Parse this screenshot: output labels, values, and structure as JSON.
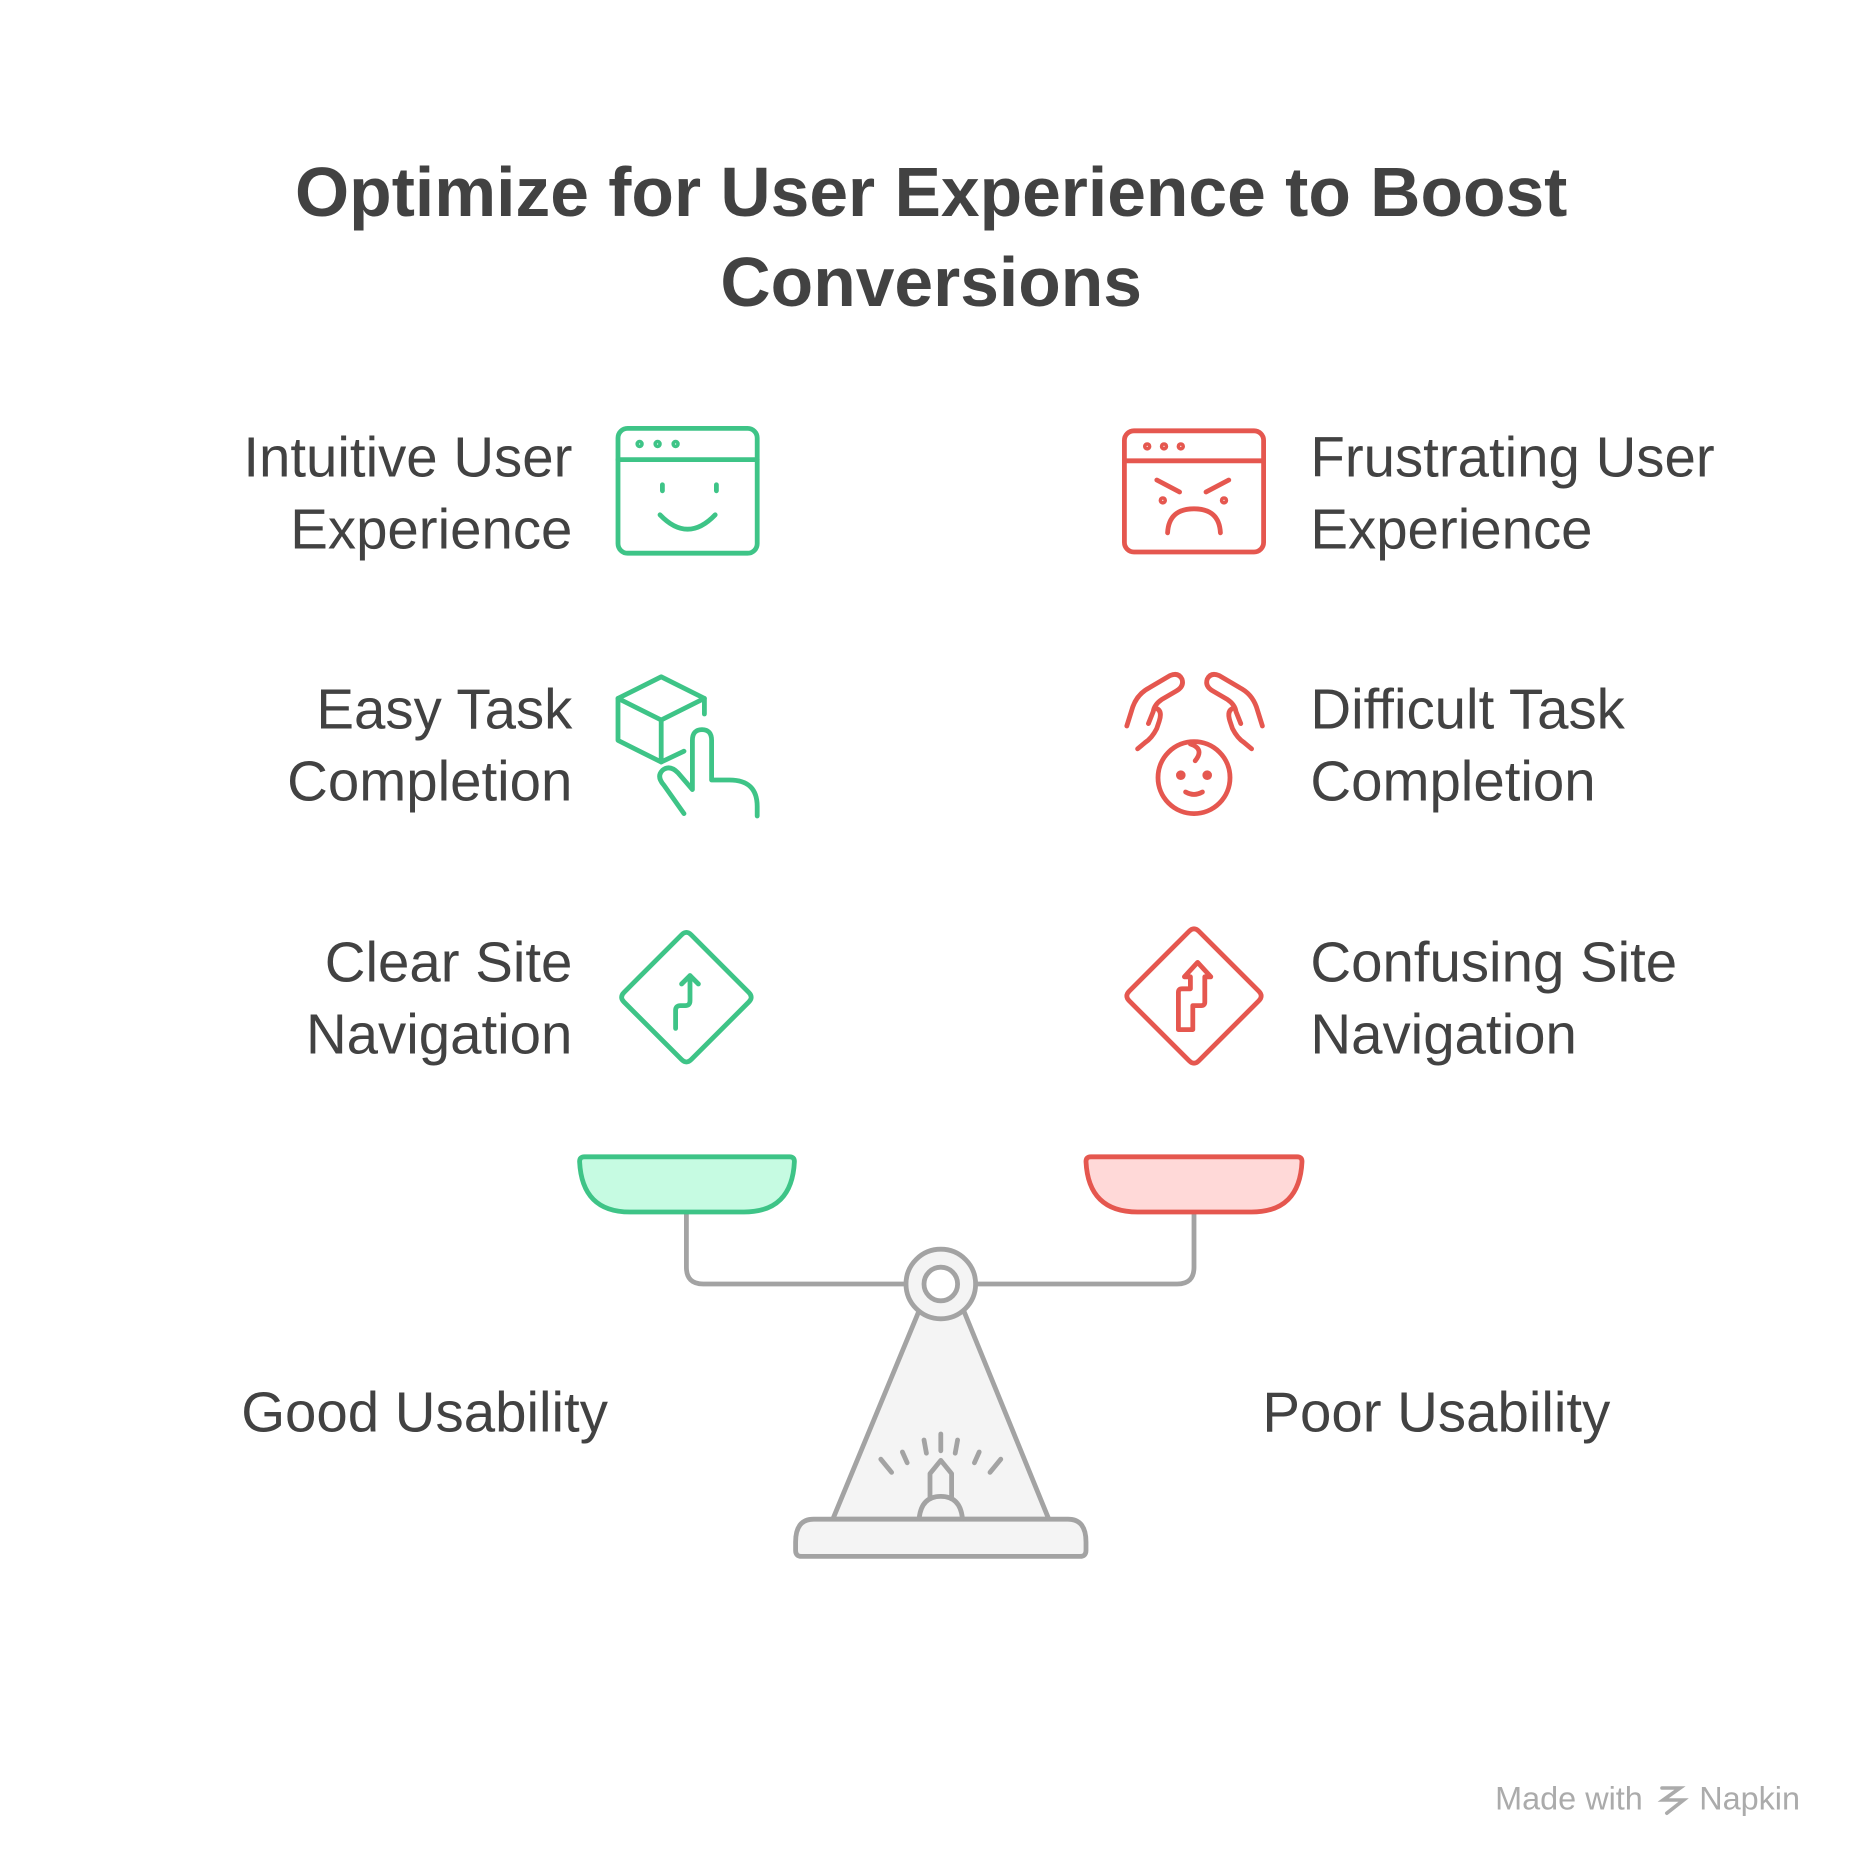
{
  "title": {
    "line1": "Optimize for User Experience to Boost",
    "line2": "Conversions"
  },
  "colors": {
    "good": "#3EC487",
    "good_fill": "#C6FBE2",
    "bad": "#E5574F",
    "bad_fill": "#FFD9D8",
    "scale": "#A3A3A3",
    "text": "#424242"
  },
  "left": {
    "items": [
      {
        "line1": "Intuitive User",
        "line2": "Experience",
        "icon": "happy-browser-icon"
      },
      {
        "line1": "Easy Task",
        "line2": "Completion",
        "icon": "box-tap-icon"
      },
      {
        "line1": "Clear Site",
        "line2": "Navigation",
        "icon": "road-sign-simple-icon"
      }
    ],
    "pan_label": "Good Usability"
  },
  "right": {
    "items": [
      {
        "line1": "Frustrating User",
        "line2": "Experience",
        "icon": "angry-browser-icon"
      },
      {
        "line1": "Difficult Task",
        "line2": "Completion",
        "icon": "stressed-face-hands-icon"
      },
      {
        "line1": "Confusing Site",
        "line2": "Navigation",
        "icon": "road-sign-winding-icon"
      }
    ],
    "pan_label": "Poor Usability"
  },
  "footer": {
    "made_with": "Made with",
    "brand": "Napkin"
  }
}
